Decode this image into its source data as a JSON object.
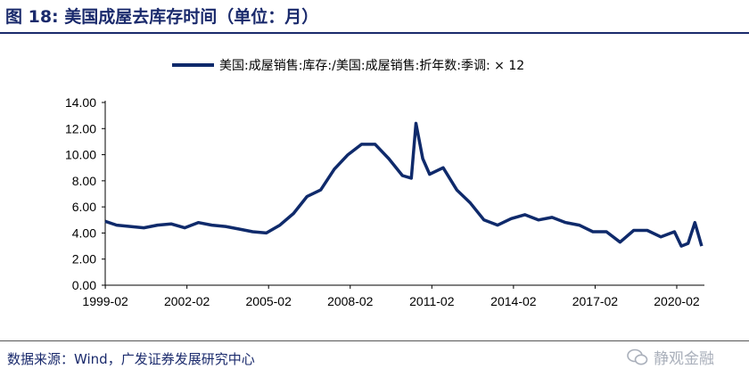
{
  "figure": {
    "title": "图 18:  美国成屋去库存时间（单位：月）",
    "source": "数据来源：Wind，广发证券发展研究中心",
    "watermark": "静观金融"
  },
  "colors": {
    "series": "#0f2a6b",
    "title": "#1a2a6c"
  },
  "chart_data": {
    "type": "line",
    "title": "",
    "xlabel": "",
    "ylabel": "",
    "ylim": [
      0,
      14
    ],
    "yticks": [
      "0.00",
      "2.00",
      "4.00",
      "6.00",
      "8.00",
      "10.00",
      "12.00",
      "14.00"
    ],
    "xticks": [
      "1999-02",
      "2002-02",
      "2005-02",
      "2008-02",
      "2011-02",
      "2014-02",
      "2017-02",
      "2020-02"
    ],
    "grid": false,
    "legend_position": "top-center",
    "series": [
      {
        "name": "美国:成屋销售:库存:/美国:成屋销售:折年数:季调: × 12",
        "x": [
          1999.08,
          1999.5,
          2000.0,
          2000.5,
          2001.0,
          2001.5,
          2002.0,
          2002.5,
          2003.0,
          2003.5,
          2004.0,
          2004.5,
          2005.0,
          2005.5,
          2006.0,
          2006.5,
          2007.0,
          2007.5,
          2008.0,
          2008.5,
          2009.0,
          2009.5,
          2010.0,
          2010.33,
          2010.5,
          2010.75,
          2011.0,
          2011.5,
          2012.0,
          2012.5,
          2013.0,
          2013.5,
          2014.0,
          2014.5,
          2015.0,
          2015.5,
          2016.0,
          2016.5,
          2017.0,
          2017.5,
          2018.0,
          2018.5,
          2019.0,
          2019.5,
          2020.0,
          2020.25,
          2020.5,
          2020.75,
          2021.0
        ],
        "y": [
          4.9,
          4.6,
          4.5,
          4.4,
          4.6,
          4.7,
          4.4,
          4.8,
          4.6,
          4.5,
          4.3,
          4.1,
          4.0,
          4.6,
          5.5,
          6.8,
          7.3,
          8.9,
          10.0,
          10.8,
          10.8,
          9.7,
          8.4,
          8.2,
          12.4,
          9.7,
          8.5,
          9.0,
          7.3,
          6.3,
          5.0,
          4.6,
          5.1,
          5.4,
          5.0,
          5.2,
          4.8,
          4.6,
          4.1,
          4.1,
          3.3,
          4.2,
          4.2,
          3.7,
          4.1,
          3.0,
          3.2,
          4.8,
          3.0
        ]
      }
    ]
  }
}
